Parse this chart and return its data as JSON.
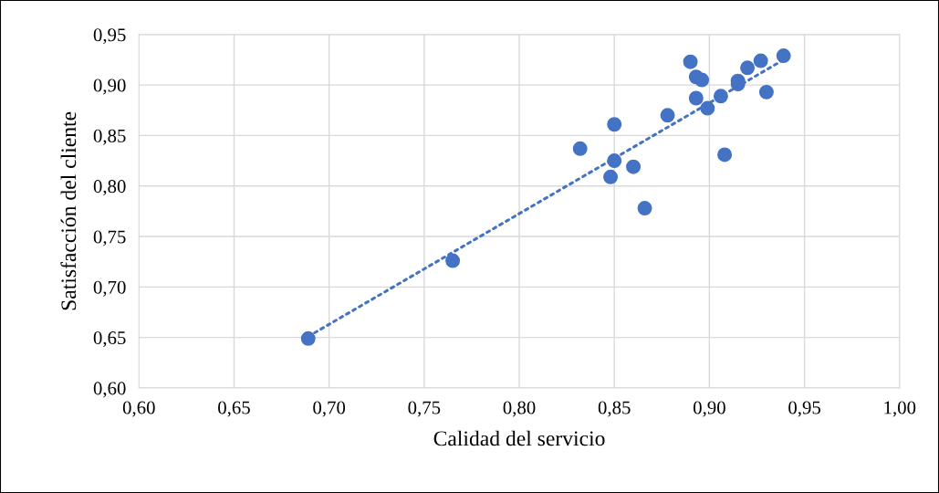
{
  "chart_data": {
    "type": "scatter",
    "xlabel": "Calidad del servicio",
    "ylabel": "Satisfacción del cliente",
    "xlim": [
      0.6,
      1.0
    ],
    "xticks": [
      {
        "value": 0.6,
        "label": "0,60"
      },
      {
        "value": 0.65,
        "label": "0,65"
      },
      {
        "value": 0.7,
        "label": "0,70"
      },
      {
        "value": 0.75,
        "label": "0,75"
      },
      {
        "value": 0.8,
        "label": "0,80"
      },
      {
        "value": 0.85,
        "label": "0,85"
      },
      {
        "value": 0.9,
        "label": "0,90"
      },
      {
        "value": 0.95,
        "label": "0,95"
      },
      {
        "value": 1.0,
        "label": "1,00"
      }
    ],
    "ylim": [
      0.6,
      0.95
    ],
    "yticks": [
      {
        "value": 0.6,
        "label": "0,60"
      },
      {
        "value": 0.65,
        "label": "0,65"
      },
      {
        "value": 0.7,
        "label": "0,70"
      },
      {
        "value": 0.75,
        "label": "0,75"
      },
      {
        "value": 0.8,
        "label": "0,80"
      },
      {
        "value": 0.85,
        "label": "0,85"
      },
      {
        "value": 0.9,
        "label": "0,90"
      },
      {
        "value": 0.95,
        "label": "0,95"
      }
    ],
    "grid": true,
    "legend": false,
    "series": [
      {
        "color": "#4472c4",
        "marker": "circle",
        "x": [
          0.689,
          0.765,
          0.832,
          0.848,
          0.85,
          0.85,
          0.86,
          0.866,
          0.878,
          0.89,
          0.893,
          0.896,
          0.893,
          0.899,
          0.906,
          0.908,
          0.915,
          0.915,
          0.92,
          0.927,
          0.93,
          0.939
        ],
        "values": [
          0.649,
          0.726,
          0.837,
          0.809,
          0.861,
          0.825,
          0.819,
          0.778,
          0.87,
          0.923,
          0.908,
          0.905,
          0.887,
          0.877,
          0.889,
          0.831,
          0.904,
          0.901,
          0.917,
          0.924,
          0.893,
          0.929
        ]
      },
      {
        "type": "line",
        "color": "#4472c4",
        "line_style": "dotted",
        "x": [
          0.689,
          0.939
        ],
        "values": [
          0.651,
          0.925
        ]
      }
    ]
  }
}
